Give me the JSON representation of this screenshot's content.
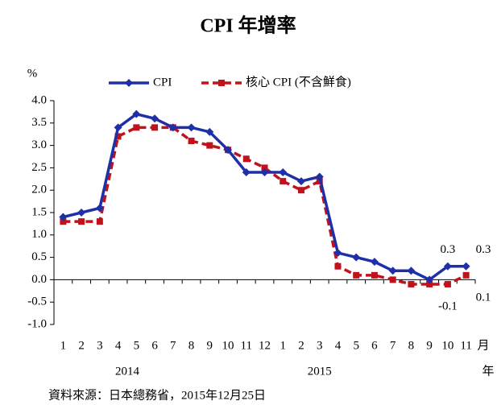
{
  "chart_data": {
    "type": "line",
    "title": "CPI 年增率",
    "y_label": "%",
    "x_unit": "月",
    "year_unit": "年",
    "categories": [
      "1",
      "2",
      "3",
      "4",
      "5",
      "6",
      "7",
      "8",
      "9",
      "10",
      "11",
      "12",
      "1",
      "2",
      "3",
      "4",
      "5",
      "6",
      "7",
      "8",
      "9",
      "10",
      "11"
    ],
    "years": [
      {
        "label": "2014",
        "start": 0,
        "end": 11
      },
      {
        "label": "2015",
        "start": 12,
        "end": 22
      }
    ],
    "series": [
      {
        "name": "CPI",
        "color": "#1f2fa8",
        "marker": "diamond",
        "values": [
          1.4,
          1.5,
          1.6,
          3.4,
          3.7,
          3.6,
          3.4,
          3.4,
          3.3,
          2.9,
          2.4,
          2.4,
          2.4,
          2.2,
          2.3,
          0.6,
          0.5,
          0.4,
          0.2,
          0.2,
          0.0,
          0.3,
          0.3
        ],
        "value_labels": [
          null,
          null,
          null,
          null,
          null,
          null,
          null,
          null,
          null,
          null,
          null,
          null,
          null,
          null,
          null,
          null,
          null,
          null,
          null,
          null,
          null,
          "0.3",
          "0.3"
        ]
      },
      {
        "name": "核心 CPI (不含鮮食)",
        "color": "#c0121c",
        "marker": "square",
        "dashed": true,
        "values": [
          1.3,
          1.3,
          1.3,
          3.2,
          3.4,
          3.4,
          3.4,
          3.1,
          3.0,
          2.9,
          2.7,
          2.5,
          2.2,
          2.0,
          2.2,
          0.3,
          0.1,
          0.1,
          0.0,
          -0.1,
          -0.1,
          -0.1,
          0.1
        ],
        "value_labels": [
          null,
          null,
          null,
          null,
          null,
          null,
          null,
          null,
          null,
          null,
          null,
          null,
          null,
          null,
          null,
          null,
          null,
          null,
          null,
          null,
          null,
          "-0.1",
          "0.1"
        ]
      }
    ],
    "ylim": [
      -1.0,
      4.0
    ],
    "yticks": [
      {
        "value": 4.0,
        "label": "4.0"
      },
      3.5,
      {
        "value": 3.0,
        "label": "3.0"
      },
      2.5,
      {
        "value": 2.0,
        "label": "2.0"
      },
      1.5,
      {
        "value": 1.0,
        "label": "1.0"
      },
      0.5,
      {
        "value": 0.0,
        "label": "0.0"
      },
      -0.5,
      {
        "value": -1.0,
        "label": "-1.0"
      }
    ],
    "legend": "top",
    "source": "資料來源：日本總務省，2015年12月25日"
  }
}
